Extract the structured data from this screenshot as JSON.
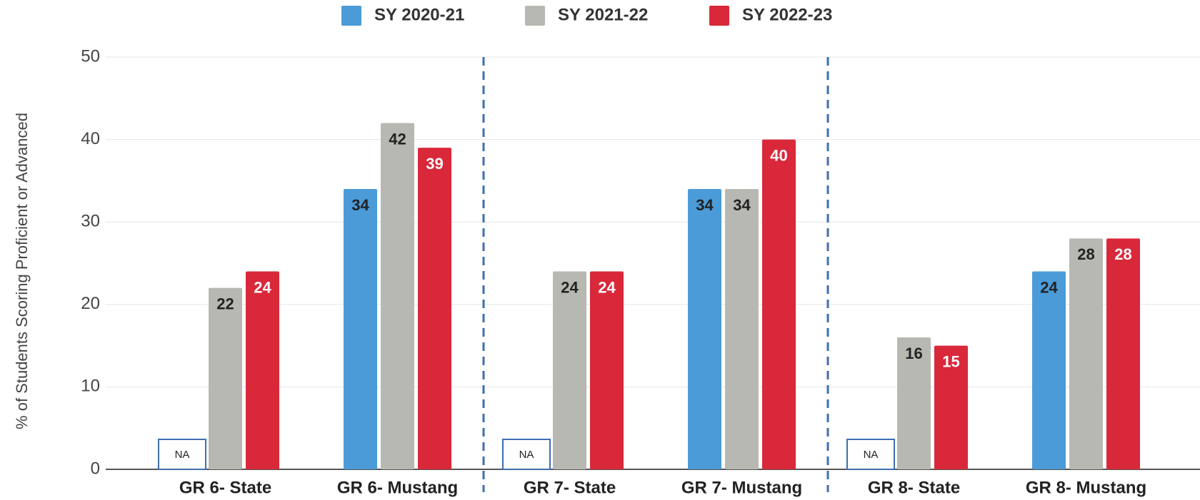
{
  "chart_data": {
    "type": "bar",
    "y_label": "% of Students Scoring Proficient or Advanced",
    "categories": [
      "GR 6- State",
      "GR 6- Mustang",
      "GR 7- State",
      "GR 7- Mustang",
      "GR 8- State",
      "GR 8- Mustang"
    ],
    "series": [
      {
        "name": "SY 2020-21",
        "color": "#4b9bd8",
        "values": [
          null,
          34,
          null,
          34,
          null,
          24
        ],
        "value_labels": [
          "NA",
          "34",
          "NA",
          "34",
          "NA",
          "24"
        ]
      },
      {
        "name": "SY 2021-22",
        "color": "#b8b8b2",
        "values": [
          22,
          42,
          24,
          34,
          16,
          28
        ]
      },
      {
        "name": "SY 2022-23",
        "color": "#d9283a",
        "values": [
          24,
          39,
          24,
          40,
          15,
          28
        ]
      }
    ],
    "ylim": [
      0,
      50
    ],
    "yticks": [
      0,
      10,
      20,
      30,
      40,
      50
    ],
    "grid": true,
    "legend": "top"
  }
}
